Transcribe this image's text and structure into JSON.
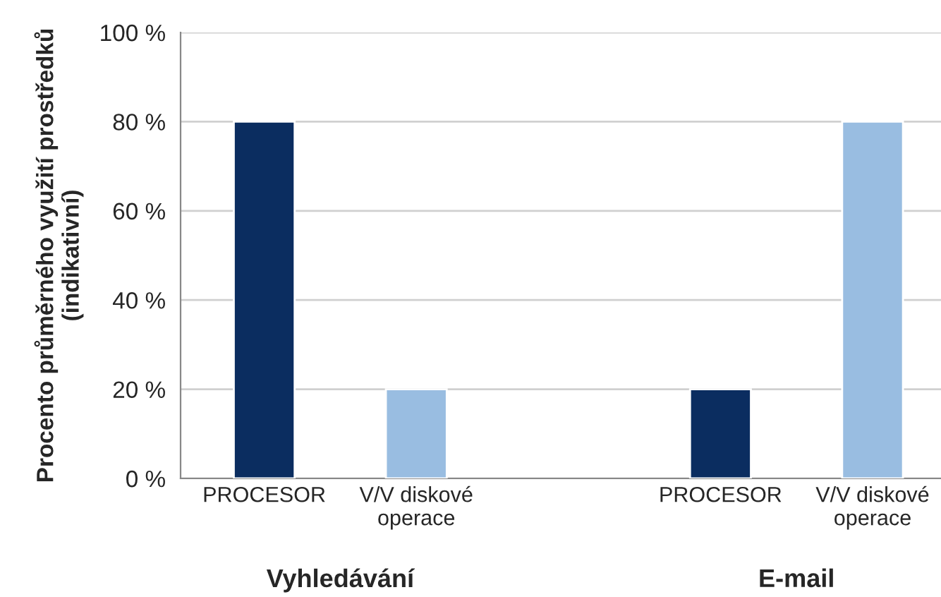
{
  "chart_data": {
    "type": "bar",
    "ylabel": "Procento průměrného využití prostředků\n(indikativní)",
    "categories": [
      "PROCESOR",
      "V/V diskové\noperace",
      null,
      "PROCESOR",
      "V/V diskové\noperace"
    ],
    "values": [
      80,
      20,
      null,
      20,
      80
    ],
    "colors": [
      "#0b2d60",
      "#99bde1",
      null,
      "#0b2d60",
      "#99bde1"
    ],
    "ylim": [
      0,
      100
    ],
    "yticks": [
      {
        "value": 0,
        "label": "0 %"
      },
      {
        "value": 20,
        "label": "20 %"
      },
      {
        "value": 40,
        "label": "40 %"
      },
      {
        "value": 60,
        "label": "60 %"
      },
      {
        "value": 80,
        "label": "80 %"
      },
      {
        "value": 100,
        "label": "100 %"
      }
    ],
    "grid": "y",
    "legend": false,
    "annotations": [
      "Vyhledávání",
      "E-mail"
    ]
  }
}
